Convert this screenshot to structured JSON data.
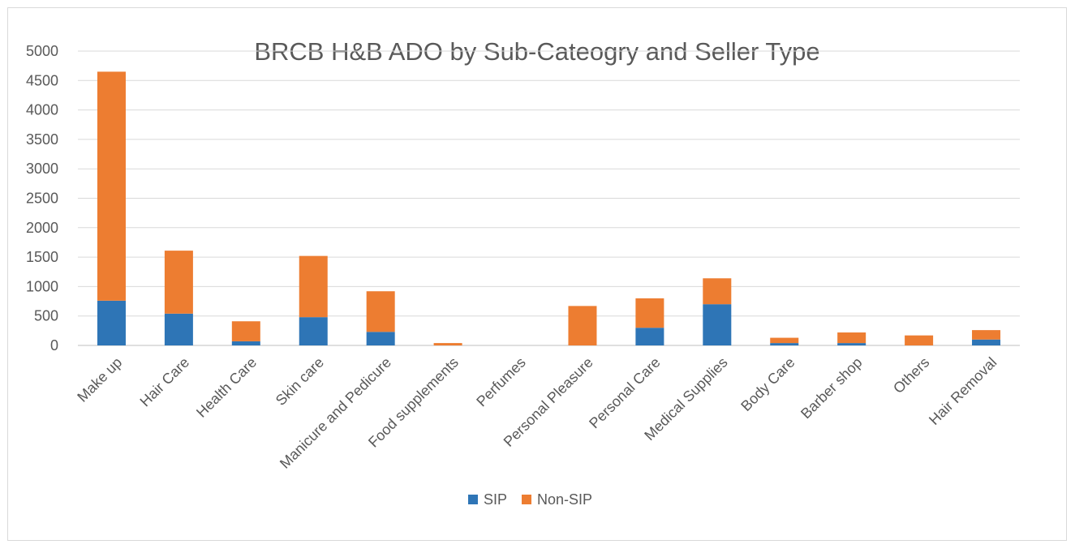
{
  "chart_data": {
    "type": "bar",
    "stacked": true,
    "title": "BRCB H&B ADO by Sub-Cateogry and Seller Type",
    "xlabel": "",
    "ylabel": "",
    "ylim": [
      0,
      5000
    ],
    "yticks": [
      0,
      500,
      1000,
      1500,
      2000,
      2500,
      3000,
      3500,
      4000,
      4500,
      5000
    ],
    "grid": true,
    "legend_position": "bottom",
    "categories": [
      "Make up",
      "Hair Care",
      "Health Care",
      "Skin care",
      "Manicure and Pedicure",
      "Food supplements",
      "Perfumes",
      "Personal Pleasure",
      "Personal Care",
      "Medical Supplies",
      "Body Care",
      "Barber shop",
      "Others",
      "Hair Removal"
    ],
    "series": [
      {
        "name": "SIP",
        "color": "#2e75b6",
        "values": [
          760,
          540,
          70,
          480,
          230,
          0,
          0,
          0,
          300,
          700,
          40,
          40,
          0,
          100
        ]
      },
      {
        "name": "Non-SIP",
        "color": "#ed7d31",
        "values": [
          3890,
          1070,
          340,
          1040,
          690,
          40,
          0,
          670,
          500,
          440,
          90,
          180,
          170,
          160
        ]
      }
    ]
  }
}
